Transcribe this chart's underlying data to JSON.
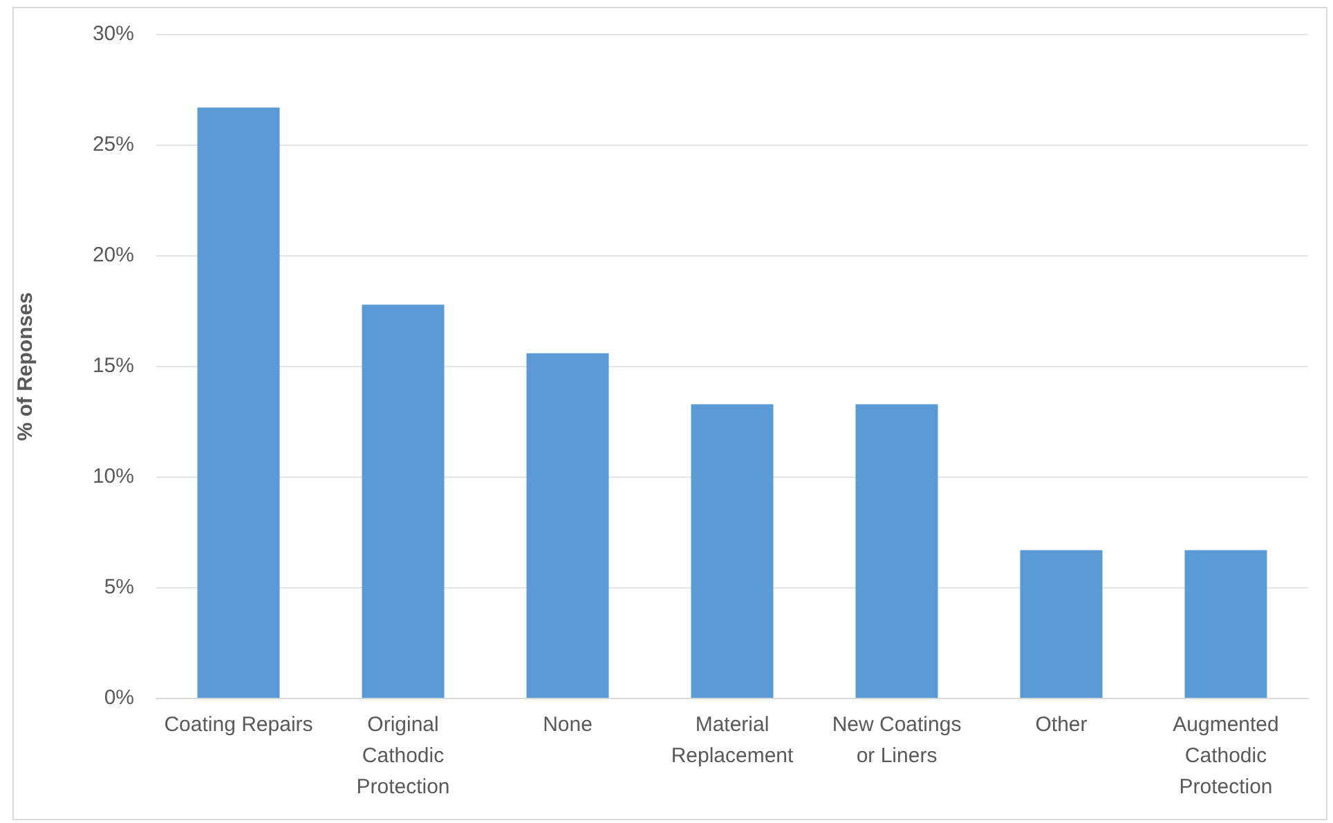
{
  "chart_data": {
    "type": "bar",
    "ylabel": "% of Reponses",
    "categories": [
      "Coating Repairs",
      "Original Cathodic Protection",
      "None",
      "Material Replacement",
      "New Coatings or Liners",
      "Other",
      "Augmented Cathodic Protection"
    ],
    "values": [
      26.7,
      17.8,
      15.6,
      13.3,
      13.3,
      6.7,
      6.7
    ],
    "color": "#5b9bd5",
    "ylim": [
      0,
      30
    ],
    "yticks": [
      {
        "value": 0,
        "label": "0%"
      },
      {
        "value": 5,
        "label": "5%"
      },
      {
        "value": 10,
        "label": "10%"
      },
      {
        "value": 15,
        "label": "15%"
      },
      {
        "value": 20,
        "label": "20%"
      },
      {
        "value": 25,
        "label": "25%"
      },
      {
        "value": 30,
        "label": "30%"
      }
    ],
    "grid": "y"
  }
}
